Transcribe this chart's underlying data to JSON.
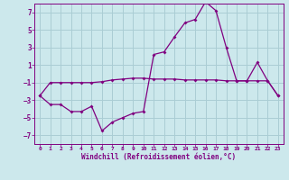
{
  "xlabel": "Windchill (Refroidissement éolien,°C)",
  "background_color": "#cce8ec",
  "grid_color": "#aacdd4",
  "line_color": "#800080",
  "xlim": [
    -0.5,
    23.5
  ],
  "ylim": [
    -8,
    8
  ],
  "xticks": [
    0,
    1,
    2,
    3,
    4,
    5,
    6,
    7,
    8,
    9,
    10,
    11,
    12,
    13,
    14,
    15,
    16,
    17,
    18,
    19,
    20,
    21,
    22,
    23
  ],
  "yticks": [
    -7,
    -5,
    -3,
    -1,
    1,
    3,
    5,
    7
  ],
  "series1_x": [
    0,
    1,
    2,
    3,
    4,
    5,
    6,
    7,
    8,
    9,
    10,
    11,
    12,
    13,
    14,
    15,
    16,
    17,
    18,
    19,
    20,
    21,
    22,
    23
  ],
  "series1_y": [
    -2.5,
    -1.0,
    -1.0,
    -1.0,
    -1.0,
    -1.0,
    -0.9,
    -0.7,
    -0.6,
    -0.5,
    -0.5,
    -0.6,
    -0.6,
    -0.6,
    -0.7,
    -0.7,
    -0.7,
    -0.7,
    -0.8,
    -0.8,
    -0.8,
    -0.8,
    -0.8,
    -2.5
  ],
  "series2_x": [
    0,
    1,
    2,
    3,
    4,
    5,
    6,
    7,
    8,
    9,
    10,
    11,
    12,
    13,
    14,
    15,
    16,
    17,
    18,
    19,
    20,
    21,
    22,
    23
  ],
  "series2_y": [
    -2.5,
    -3.5,
    -3.5,
    -4.3,
    -4.3,
    -3.7,
    -6.5,
    -5.5,
    -5.0,
    -4.5,
    -4.3,
    2.2,
    2.5,
    4.2,
    5.8,
    6.2,
    8.2,
    7.2,
    3.0,
    -0.8,
    -0.8,
    1.3,
    -0.8,
    -2.5
  ]
}
